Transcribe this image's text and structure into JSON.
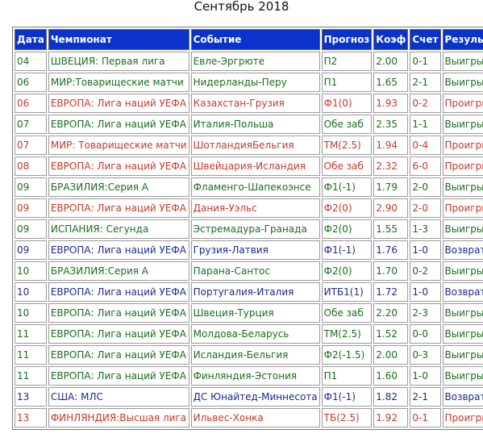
{
  "title": "Сентябрь 2018",
  "headers": {
    "date": "Дата",
    "league": "Чемпионат",
    "event": "Событие",
    "forecast": "Прогноз",
    "odds": "Коэф",
    "score": "Счет",
    "result": "Результат"
  },
  "colors": {
    "header_bg": "#0a33cc",
    "win": "#1a6d1a",
    "lose": "#c23a2c",
    "return": "#1c2a8a"
  },
  "rows": [
    {
      "date": "04",
      "league": "ШВЕЦИЯ: Первая лига",
      "event": "Евле-Эргрюте",
      "forecast": "П2",
      "odds": "2.00",
      "score": "0-1",
      "result": "Выигрыш",
      "status": "win"
    },
    {
      "date": "06",
      "league": "МИР:Товарищеские матчи",
      "event": "Нидерланды-Перу",
      "forecast": "П1",
      "odds": "1.65",
      "score": "2-1",
      "result": "Выигрыш",
      "status": "win"
    },
    {
      "date": "06",
      "league": "ЕВРОПА: Лига наций УЕФА",
      "event": "Казахстан-Грузия",
      "forecast": "Ф1(0)",
      "odds": "1.93",
      "score": "0-2",
      "result": "Проигрыш",
      "status": "lose"
    },
    {
      "date": "07",
      "league": "ЕВРОПА: Лига наций УЕФА",
      "event": "Италия-Польша",
      "forecast": "Обе заб",
      "odds": "2.35",
      "score": "1-1",
      "result": "Выигрыш",
      "status": "win"
    },
    {
      "date": "07",
      "league": "МИР: Товарищеские матчи",
      "event": "ШотландияБельгия",
      "forecast": "ТМ(2.5)",
      "odds": "1.94",
      "score": "0-4",
      "result": "Проигрыш",
      "status": "lose"
    },
    {
      "date": "08",
      "league": "ЕВРОПА: Лига наций УЕФА",
      "event": "Швейцария-Исландия",
      "forecast": "Обе заб",
      "odds": "2.32",
      "score": "6-0",
      "result": "Проигрыш",
      "status": "lose"
    },
    {
      "date": "09",
      "league": "БРАЗИЛИЯ:Серия А",
      "event": "Фламенго-Шапекоэнсе",
      "forecast": "Ф1(-1)",
      "odds": "1.79",
      "score": "2-0",
      "result": "Выигрыш",
      "status": "win"
    },
    {
      "date": "09",
      "league": "ЕВРОПА: Лига наций УЕФА",
      "event": "Дания-Уэльс",
      "forecast": "Ф2(0)",
      "odds": "2.90",
      "score": "2-0",
      "result": "Проигрыш",
      "status": "lose"
    },
    {
      "date": "09",
      "league": "ИСПАНИЯ: Сегунда",
      "event": "Эстремадура-Гранада",
      "forecast": "Ф2(0)",
      "odds": "1.55",
      "score": "1-3",
      "result": "Выигрыш",
      "status": "win"
    },
    {
      "date": "09",
      "league": "ЕВРОПА: Лига наций УЕФА",
      "event": "Грузия-Латвия",
      "forecast": "Ф1(-1)",
      "odds": "1.76",
      "score": "1-0",
      "result": "Возврат",
      "status": "return"
    },
    {
      "date": "10",
      "league": "БРАЗИЛИЯ:Серия А",
      "event": "Парана-Сантос",
      "forecast": "Ф2(0)",
      "odds": "1.70",
      "score": "0-2",
      "result": "Выигрыш",
      "status": "win"
    },
    {
      "date": "10",
      "league": "ЕВРОПА: Лига наций УЕФА",
      "event": "Португалия-Италия",
      "forecast": "ИТБ1(1)",
      "odds": "1.72",
      "score": "1-0",
      "result": "Возврат",
      "status": "return"
    },
    {
      "date": "10",
      "league": "ЕВРОПА: Лига наций УЕФА",
      "event": "Швеция-Турция",
      "forecast": "Обе заб",
      "odds": "2.20",
      "score": "2-3",
      "result": "Выигрыш",
      "status": "win"
    },
    {
      "date": "11",
      "league": "ЕВРОПА: Лига наций УЕФА",
      "event": "Молдова-Беларусь",
      "forecast": "ТМ(2.5)",
      "odds": "1.52",
      "score": "0-0",
      "result": "Выигрыш",
      "status": "win"
    },
    {
      "date": "11",
      "league": "ЕВРОПА: Лига наций УЕФА",
      "event": "Исландия-Бельгия",
      "forecast": "Ф2(-1.5)",
      "odds": "2.00",
      "score": "0-3",
      "result": "Выигрыш",
      "status": "win"
    },
    {
      "date": "11",
      "league": "ЕВРОПА: Лига наций УЕФА",
      "event": "Финляндия-Эстония",
      "forecast": "П1",
      "odds": "1.60",
      "score": "1-0",
      "result": "Выигрыш",
      "status": "win"
    },
    {
      "date": "13",
      "league": "США: МЛС",
      "event": "ДС Юнайтед-Миннесота",
      "forecast": "Ф1(-1)",
      "odds": "1.82",
      "score": "2-1",
      "result": "Возврат",
      "status": "return"
    },
    {
      "date": "13",
      "league": "ФИНЛЯНДИЯ:Высшая лига",
      "event": "Ильвес-Хонка",
      "forecast": "ТБ(2.5)",
      "odds": "1.92",
      "score": "0-1",
      "result": "Проигрыш",
      "status": "lose"
    }
  ]
}
